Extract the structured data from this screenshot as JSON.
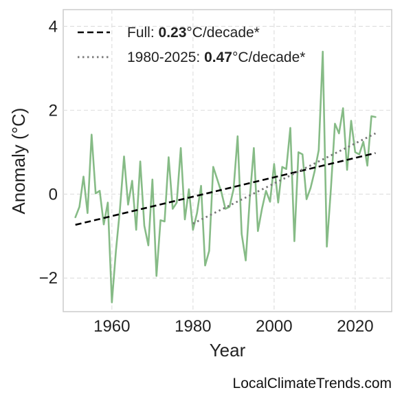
{
  "chart_data": {
    "type": "line",
    "xlabel": "Year",
    "ylabel": "Anomaly (°C)",
    "xlim": [
      1948,
      2029
    ],
    "ylim": [
      -2.8,
      4.4
    ],
    "xticks": [
      1960,
      1980,
      2000,
      2020
    ],
    "yticks": [
      4,
      2,
      0,
      -2
    ],
    "ytick_labels": [
      "4",
      "2",
      "0",
      "−2"
    ],
    "grid": true,
    "legend_placement": "top-left",
    "series": [
      {
        "color": "#86bb86",
        "x": [
          1951,
          1952,
          1953,
          1954,
          1955,
          1956,
          1957,
          1958,
          1959,
          1960,
          1961,
          1962,
          1963,
          1964,
          1965,
          1966,
          1967,
          1968,
          1969,
          1970,
          1971,
          1972,
          1973,
          1974,
          1975,
          1976,
          1977,
          1978,
          1979,
          1980,
          1981,
          1982,
          1983,
          1984,
          1985,
          1986,
          1987,
          1988,
          1989,
          1990,
          1991,
          1992,
          1993,
          1994,
          1995,
          1996,
          1997,
          1998,
          1999,
          2000,
          2001,
          2002,
          2003,
          2004,
          2005,
          2006,
          2007,
          2008,
          2009,
          2010,
          2011,
          2012,
          2013,
          2014,
          2015,
          2016,
          2017,
          2018,
          2019,
          2020,
          2021,
          2022,
          2023,
          2024,
          2025
        ],
        "y": [
          -0.55,
          -0.3,
          0.42,
          -0.45,
          1.42,
          0.02,
          0.08,
          -0.72,
          -0.2,
          -2.58,
          -1.35,
          -0.35,
          0.9,
          -0.25,
          0.32,
          -0.85,
          0.78,
          -0.75,
          -1.22,
          0.35,
          -1.95,
          -0.62,
          -0.65,
          0.88,
          -0.35,
          -0.2,
          1.1,
          -0.6,
          0.12,
          -0.85,
          -0.45,
          0.2,
          -1.7,
          -1.35,
          0.65,
          0.35,
          0.05,
          -0.35,
          -0.3,
          0.12,
          1.38,
          -0.95,
          -1.58,
          -0.1,
          1.1,
          -0.88,
          -0.35,
          0.08,
          -0.18,
          0.72,
          -0.2,
          0.65,
          0.6,
          1.58,
          -1.12,
          1.0,
          0.95,
          -0.12,
          0.15,
          0.55,
          1.05,
          3.4,
          -1.25,
          0.12,
          1.68,
          1.45,
          2.05,
          0.58,
          1.75,
          1.0,
          0.95,
          1.25,
          0.68,
          1.86,
          1.84
        ]
      },
      {
        "name": "Full",
        "style": "dashed",
        "color": "#000000",
        "x": [
          1951,
          2025
        ],
        "y": [
          -0.73,
          0.98
        ]
      },
      {
        "name": "1980-2025",
        "style": "dotted",
        "color": "#777777",
        "x": [
          1980,
          2025
        ],
        "y": [
          -0.7,
          1.45
        ]
      }
    ],
    "legend": [
      {
        "prefix": "Full: ",
        "bold": "0.23",
        "suffix": "°C/decade*",
        "style": "dashed",
        "color": "#000000"
      },
      {
        "prefix": "1980-2025: ",
        "bold": "0.47",
        "suffix": "°C/decade*",
        "style": "dotted",
        "color": "#777777"
      }
    ]
  },
  "watermark": "LocalClimateTrends.com"
}
